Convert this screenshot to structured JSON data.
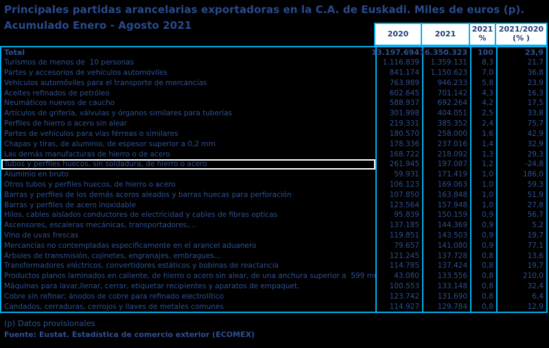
{
  "title": "Principales partidas arancelarias exportadoras en la C.A. de Euskadi. Miles de euros (p).\nAcumulado Enero - Agosto 2021",
  "colors": {
    "background": "#000000",
    "border_accent": "#00b0f0",
    "title_text": "#2a4a8e",
    "header_text": "#203e75",
    "row_text": "#2e5094",
    "header_fill": "#ffffff",
    "highlight_border": "#ffffff"
  },
  "footnotes": {
    "provisional": "(p) Datos provisionales",
    "source": "Fuente: Eustat. Estadística de comercio exterior (ECOMEX)"
  },
  "chart_data": {
    "type": "table",
    "title": "Principales partidas arancelarias exportadoras en la C.A. de Euskadi. Miles de euros (p). Acumulado Enero - Agosto 2021",
    "columns": [
      "2020",
      "2021",
      "2021\n%",
      "2021/2020\n(% )"
    ],
    "rows": [
      {
        "label": "Total",
        "v2020": "13.197.694",
        "v2021": "16.350.323",
        "pct": "100",
        "yoy": "23,9",
        "bold": true,
        "highlight": false
      },
      {
        "label": "Turismos de menos de  10 personas",
        "v2020": "1.116.839",
        "v2021": "1.359.131",
        "pct": "8,3",
        "yoy": "21,7",
        "bold": false,
        "highlight": false
      },
      {
        "label": "Partes y accesorios de vehículos automóviles",
        "v2020": "841.174",
        "v2021": "1.150.623",
        "pct": "7,0",
        "yoy": "36,8",
        "bold": false,
        "highlight": false
      },
      {
        "label": "Vehículos automóviles para el transporte de mercancías",
        "v2020": "763.989",
        "v2021": "946.233",
        "pct": "5,8",
        "yoy": "23,9",
        "bold": false,
        "highlight": false
      },
      {
        "label": "Aceites refinados de petróleo",
        "v2020": "602.645",
        "v2021": "701.142",
        "pct": "4,3",
        "yoy": "16,3",
        "bold": false,
        "highlight": false
      },
      {
        "label": "Neumáticos nuevos de caucho",
        "v2020": "588.937",
        "v2021": "692.264",
        "pct": "4,2",
        "yoy": "17,5",
        "bold": false,
        "highlight": false
      },
      {
        "label": "Artículos de grifería, válvulas y órganos similares para tuberías",
        "v2020": "301.998",
        "v2021": "404.051",
        "pct": "2,5",
        "yoy": "33,8",
        "bold": false,
        "highlight": false
      },
      {
        "label": "Perfiles de hierro o acero sin alear",
        "v2020": "219.331",
        "v2021": "385.352",
        "pct": "2,4",
        "yoy": "75,7",
        "bold": false,
        "highlight": false
      },
      {
        "label": "Partes de vehículos para vías férreas o similares",
        "v2020": "180.570",
        "v2021": "258.000",
        "pct": "1,6",
        "yoy": "42,9",
        "bold": false,
        "highlight": false
      },
      {
        "label": "Chapas y tiras, de aluminio, de espesor superior a 0,2 mm",
        "v2020": "178.336",
        "v2021": "237.016",
        "pct": "1,4",
        "yoy": "32,9",
        "bold": false,
        "highlight": false
      },
      {
        "label": "Las demás manufacturas de hierro o de acero",
        "v2020": "168.722",
        "v2021": "218.092",
        "pct": "1,3",
        "yoy": "29,3",
        "bold": false,
        "highlight": false
      },
      {
        "label": "Tubos y perfiles huecos, sin soldadura, de hierro o acero",
        "v2020": "261.945",
        "v2021": "197.087",
        "pct": "1,2",
        "yoy": "-24,8",
        "bold": false,
        "highlight": true
      },
      {
        "label": "Aluminio en bruto",
        "v2020": "59.931",
        "v2021": "171.419",
        "pct": "1,0",
        "yoy": "186,0",
        "bold": false,
        "highlight": false
      },
      {
        "label": "Otros tubos y perfiles huecos, de hierro o acero",
        "v2020": "106.123",
        "v2021": "169.063",
        "pct": "1,0",
        "yoy": "59,3",
        "bold": false,
        "highlight": false
      },
      {
        "label": "Barras y perfiles de los demás aceros aleados y barras huecas para perforación",
        "v2020": "107.850",
        "v2021": "163.848",
        "pct": "1,0",
        "yoy": "51,9",
        "bold": false,
        "highlight": false
      },
      {
        "label": "Barras y perfiles de acero inoxidable",
        "v2020": "123.564",
        "v2021": "157.948",
        "pct": "1,0",
        "yoy": "27,8",
        "bold": false,
        "highlight": false
      },
      {
        "label": "Hilos, cables aislados conductores de electricidad y cables de fibras opticas",
        "v2020": "95.839",
        "v2021": "150.159",
        "pct": "0,9",
        "yoy": "56,7",
        "bold": false,
        "highlight": false
      },
      {
        "label": "Ascensores, escaleras mecánicas, transportadores,...",
        "v2020": "137.185",
        "v2021": "144.369",
        "pct": "0,9",
        "yoy": "5,2",
        "bold": false,
        "highlight": false
      },
      {
        "label": "Vino de uvas frescas",
        "v2020": "119.851",
        "v2021": "143.503",
        "pct": "0,9",
        "yoy": "19,7",
        "bold": false,
        "highlight": false
      },
      {
        "label": "Mercancías no contempladas especificamente en el arancel aduanero",
        "v2020": "79.657",
        "v2021": "141.080",
        "pct": "0,9",
        "yoy": "77,1",
        "bold": false,
        "highlight": false
      },
      {
        "label": "Árboles de transmisión, cojinetes, engranajes, embragues...",
        "v2020": "121.245",
        "v2021": "137.728",
        "pct": "0,8",
        "yoy": "13,6",
        "bold": false,
        "highlight": false
      },
      {
        "label": "Transformadores eléctricos, convertidores estáticos y bobinas de reactancia",
        "v2020": "114.785",
        "v2021": "137.424",
        "pct": "0,8",
        "yoy": "19,7",
        "bold": false,
        "highlight": false
      },
      {
        "label": "Productos planos laminados en caliente, de hierro o acero sin alear, de una anchura superior a  599 mm",
        "v2020": "43.080",
        "v2021": "133.556",
        "pct": "0,8",
        "yoy": "210,0",
        "bold": false,
        "highlight": false
      },
      {
        "label": "Máquinas para lavar,llenar, cerrar, etiquetar recipientes y aparatos de empaquet.",
        "v2020": "100.553",
        "v2021": "133.148",
        "pct": "0,8",
        "yoy": "32,4",
        "bold": false,
        "highlight": false
      },
      {
        "label": "Cobre sin refinar; ánodos de cobre para refinado electrolítico",
        "v2020": "123.742",
        "v2021": "131.690",
        "pct": "0,8",
        "yoy": "6,4",
        "bold": false,
        "highlight": false
      },
      {
        "label": "Candados, cerraduras, cerrojos y llaves de metales comunes",
        "v2020": "114.927",
        "v2021": "129.784",
        "pct": "0,8",
        "yoy": "12,9",
        "bold": false,
        "highlight": false
      }
    ]
  }
}
